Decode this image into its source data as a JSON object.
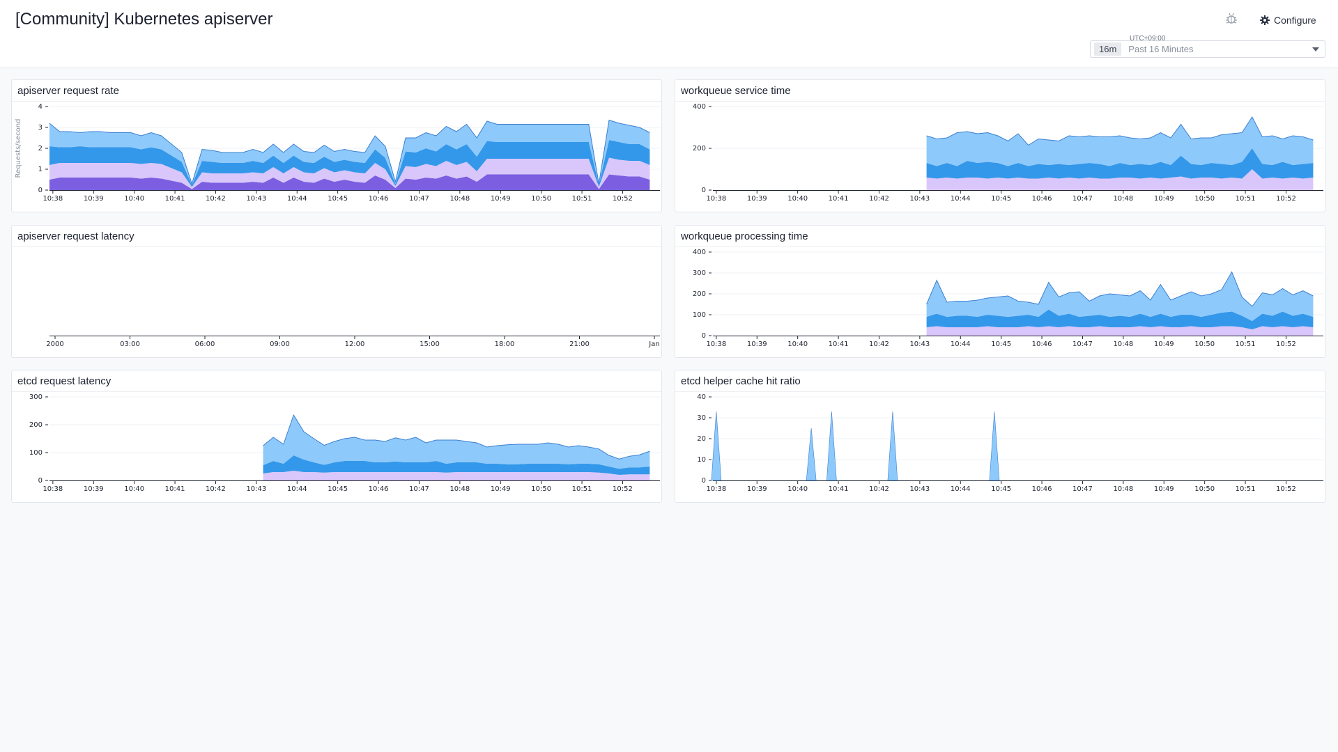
{
  "header": {
    "title": "[Community] Kubernetes apiserver",
    "configure_label": "Configure",
    "timezone": "UTC+09:00",
    "range_badge": "16m",
    "range_text": "Past 16 Minutes"
  },
  "colors": {
    "light_blue": "#8ec9fb",
    "mid_blue": "#3498ea",
    "lavender": "#d9c6fb",
    "purple": "#7b5fe0",
    "outline_blue": "#3b7fd0"
  },
  "widgets": [
    {
      "id": "apiserver-request-rate",
      "title": "apiserver request rate",
      "ylabel": "Requests/second",
      "yticks": [
        "0",
        "1",
        "2",
        "3",
        "4"
      ],
      "xticks": [
        "10:38",
        "10:39",
        "10:40",
        "10:41",
        "10:42",
        "10:43",
        "10:44",
        "10:45",
        "10:46",
        "10:47",
        "10:48",
        "10:49",
        "10:50",
        "10:51",
        "10:52"
      ]
    },
    {
      "id": "workqueue-service-time",
      "title": "workqueue service time",
      "yticks": [
        "0",
        "200",
        "400"
      ],
      "xticks": [
        "10:38",
        "10:39",
        "10:40",
        "10:41",
        "10:42",
        "10:43",
        "10:44",
        "10:45",
        "10:46",
        "10:47",
        "10:48",
        "10:49",
        "10:50",
        "10:51",
        "10:52"
      ]
    },
    {
      "id": "apiserver-request-latency",
      "title": "apiserver request latency",
      "yticks": [],
      "xticks": [
        "2000",
        "03:00",
        "06:00",
        "09:00",
        "12:00",
        "15:00",
        "18:00",
        "21:00",
        "Jan"
      ]
    },
    {
      "id": "workqueue-processing-time",
      "title": "workqueue processing time",
      "yticks": [
        "0",
        "100",
        "200",
        "300",
        "400"
      ],
      "xticks": [
        "10:38",
        "10:39",
        "10:40",
        "10:41",
        "10:42",
        "10:43",
        "10:44",
        "10:45",
        "10:46",
        "10:47",
        "10:48",
        "10:49",
        "10:50",
        "10:51",
        "10:52"
      ]
    },
    {
      "id": "etcd-request-latency",
      "title": "etcd request latency",
      "yticks": [
        "0",
        "100",
        "200",
        "300"
      ],
      "xticks": [
        "10:38",
        "10:39",
        "10:40",
        "10:41",
        "10:42",
        "10:43",
        "10:44",
        "10:45",
        "10:46",
        "10:47",
        "10:48",
        "10:49",
        "10:50",
        "10:51",
        "10:52"
      ]
    },
    {
      "id": "etcd-helper-cache-hit-ratio",
      "title": "etcd helper cache hit ratio",
      "yticks": [
        "0",
        "10",
        "20",
        "30",
        "40"
      ],
      "xticks": [
        "10:38",
        "10:39",
        "10:40",
        "10:41",
        "10:42",
        "10:43",
        "10:44",
        "10:45",
        "10:46",
        "10:47",
        "10:48",
        "10:49",
        "10:50",
        "10:51",
        "10:52"
      ]
    }
  ],
  "chart_data": [
    {
      "widget": "apiserver-request-rate",
      "type": "area",
      "stacked": true,
      "ylim": [
        0,
        4
      ],
      "x": [
        "10:37:55",
        "10:38:10",
        "10:38:25",
        "10:38:40",
        "10:38:55",
        "10:39:10",
        "10:39:25",
        "10:39:40",
        "10:39:55",
        "10:40:10",
        "10:40:25",
        "10:40:40",
        "10:40:55",
        "10:41:10",
        "10:41:25",
        "10:41:40",
        "10:41:55",
        "10:42:10",
        "10:42:25",
        "10:42:40",
        "10:42:55",
        "10:43:10",
        "10:43:25",
        "10:43:40",
        "10:43:55",
        "10:44:10",
        "10:44:25",
        "10:44:40",
        "10:44:55",
        "10:45:10",
        "10:45:25",
        "10:45:40",
        "10:45:55",
        "10:46:10",
        "10:46:25",
        "10:46:40",
        "10:46:55",
        "10:47:10",
        "10:47:25",
        "10:47:40",
        "10:47:55",
        "10:48:10",
        "10:48:25",
        "10:48:40",
        "10:48:55",
        "10:49:10",
        "10:49:25",
        "10:49:40",
        "10:49:55",
        "10:50:10",
        "10:50:25",
        "10:50:40",
        "10:50:55",
        "10:51:10",
        "10:51:25",
        "10:51:40",
        "10:51:55",
        "10:52:10",
        "10:52:25",
        "10:52:40"
      ],
      "series": [
        {
          "values": [
            0.5,
            0.6,
            0.6,
            0.6,
            0.6,
            0.6,
            0.6,
            0.6,
            0.6,
            0.55,
            0.6,
            0.55,
            0.45,
            0.35,
            0.05,
            0.4,
            0.35,
            0.35,
            0.35,
            0.35,
            0.4,
            0.35,
            0.6,
            0.35,
            0.6,
            0.4,
            0.35,
            0.55,
            0.4,
            0.5,
            0.4,
            0.35,
            0.7,
            0.5,
            0.1,
            0.55,
            0.5,
            0.6,
            0.55,
            0.7,
            0.55,
            0.65,
            0.4,
            0.75,
            0.75,
            0.75,
            0.75,
            0.75,
            0.75,
            0.75,
            0.75,
            0.75,
            0.75,
            0.75,
            0.05,
            0.75,
            0.7,
            0.65,
            0.65,
            0.5
          ]
        },
        {
          "values": [
            0.7,
            0.7,
            0.7,
            0.7,
            0.7,
            0.7,
            0.7,
            0.7,
            0.7,
            0.7,
            0.7,
            0.7,
            0.6,
            0.5,
            0.1,
            0.45,
            0.45,
            0.45,
            0.45,
            0.45,
            0.45,
            0.45,
            0.5,
            0.45,
            0.5,
            0.45,
            0.45,
            0.5,
            0.45,
            0.45,
            0.45,
            0.45,
            0.6,
            0.5,
            0.1,
            0.6,
            0.6,
            0.65,
            0.6,
            0.7,
            0.65,
            0.7,
            0.5,
            0.75,
            0.75,
            0.75,
            0.75,
            0.75,
            0.75,
            0.75,
            0.75,
            0.75,
            0.75,
            0.75,
            0.1,
            0.8,
            0.75,
            0.75,
            0.75,
            0.7
          ]
        },
        {
          "values": [
            0.9,
            0.75,
            0.75,
            0.8,
            0.75,
            0.75,
            0.75,
            0.75,
            0.75,
            0.7,
            0.75,
            0.7,
            0.6,
            0.5,
            0.1,
            0.55,
            0.55,
            0.5,
            0.5,
            0.5,
            0.55,
            0.5,
            0.55,
            0.5,
            0.55,
            0.5,
            0.5,
            0.55,
            0.5,
            0.5,
            0.5,
            0.5,
            0.65,
            0.55,
            0.1,
            0.7,
            0.7,
            0.75,
            0.7,
            0.8,
            0.75,
            0.85,
            0.7,
            0.85,
            0.8,
            0.8,
            0.8,
            0.8,
            0.8,
            0.8,
            0.8,
            0.8,
            0.8,
            0.8,
            0.1,
            0.85,
            0.85,
            0.8,
            0.8,
            0.75
          ]
        },
        {
          "values": [
            1.1,
            0.75,
            0.75,
            0.65,
            0.75,
            0.75,
            0.7,
            0.7,
            0.7,
            0.65,
            0.7,
            0.65,
            0.55,
            0.45,
            0.05,
            0.55,
            0.55,
            0.5,
            0.5,
            0.5,
            0.55,
            0.5,
            0.55,
            0.5,
            0.55,
            0.5,
            0.5,
            0.55,
            0.5,
            0.5,
            0.5,
            0.5,
            0.65,
            0.55,
            0.1,
            0.65,
            0.7,
            0.75,
            0.75,
            0.85,
            0.85,
            0.95,
            0.9,
            0.95,
            0.85,
            0.85,
            0.85,
            0.85,
            0.85,
            0.85,
            0.85,
            0.85,
            0.85,
            0.85,
            0.05,
            0.95,
            0.9,
            0.9,
            0.8,
            0.8
          ]
        }
      ]
    },
    {
      "widget": "workqueue-service-time",
      "type": "area",
      "stacked": true,
      "ylim": [
        0,
        400
      ],
      "x": [
        "10:43:10",
        "10:43:25",
        "10:43:40",
        "10:43:55",
        "10:44:10",
        "10:44:25",
        "10:44:40",
        "10:44:55",
        "10:45:10",
        "10:45:25",
        "10:45:40",
        "10:45:55",
        "10:46:10",
        "10:46:25",
        "10:46:40",
        "10:46:55",
        "10:47:10",
        "10:47:25",
        "10:47:40",
        "10:47:55",
        "10:48:10",
        "10:48:25",
        "10:48:40",
        "10:48:55",
        "10:49:10",
        "10:49:25",
        "10:49:40",
        "10:49:55",
        "10:50:10",
        "10:50:25",
        "10:50:40",
        "10:50:55",
        "10:51:10",
        "10:51:25",
        "10:51:40",
        "10:51:55",
        "10:52:10",
        "10:52:25",
        "10:52:40"
      ],
      "series": [
        {
          "values": [
            60,
            55,
            60,
            55,
            60,
            60,
            55,
            60,
            55,
            60,
            55,
            55,
            60,
            55,
            60,
            55,
            60,
            55,
            55,
            60,
            60,
            55,
            60,
            55,
            60,
            65,
            55,
            60,
            60,
            55,
            60,
            55,
            100,
            55,
            60,
            55,
            60,
            55,
            60
          ]
        },
        {
          "values": [
            70,
            60,
            70,
            60,
            80,
            70,
            80,
            70,
            60,
            70,
            60,
            70,
            60,
            70,
            60,
            70,
            70,
            70,
            60,
            70,
            60,
            70,
            60,
            80,
            60,
            100,
            70,
            60,
            70,
            70,
            60,
            80,
            100,
            70,
            60,
            80,
            60,
            70,
            70
          ]
        },
        {
          "values": [
            130,
            130,
            120,
            160,
            140,
            140,
            140,
            130,
            120,
            140,
            100,
            120,
            120,
            110,
            140,
            130,
            130,
            130,
            140,
            130,
            130,
            120,
            130,
            140,
            130,
            150,
            120,
            130,
            120,
            140,
            150,
            140,
            150,
            130,
            140,
            110,
            140,
            130,
            110
          ]
        }
      ]
    },
    {
      "widget": "apiserver-request-latency",
      "type": "area",
      "x": [],
      "series": []
    },
    {
      "widget": "workqueue-processing-time",
      "type": "area",
      "stacked": true,
      "ylim": [
        0,
        400
      ],
      "x": [
        "10:43:10",
        "10:43:25",
        "10:43:40",
        "10:43:55",
        "10:44:10",
        "10:44:25",
        "10:44:40",
        "10:44:55",
        "10:45:10",
        "10:45:25",
        "10:45:40",
        "10:45:55",
        "10:46:10",
        "10:46:25",
        "10:46:40",
        "10:46:55",
        "10:47:10",
        "10:47:25",
        "10:47:40",
        "10:47:55",
        "10:48:10",
        "10:48:25",
        "10:48:40",
        "10:48:55",
        "10:49:10",
        "10:49:25",
        "10:49:40",
        "10:49:55",
        "10:50:10",
        "10:50:25",
        "10:50:40",
        "10:50:55",
        "10:51:10",
        "10:51:25",
        "10:51:40",
        "10:51:55",
        "10:52:10",
        "10:52:25",
        "10:52:40"
      ],
      "series": [
        {
          "values": [
            40,
            45,
            40,
            40,
            40,
            40,
            45,
            40,
            40,
            40,
            45,
            40,
            45,
            40,
            45,
            40,
            40,
            45,
            40,
            40,
            40,
            45,
            40,
            45,
            40,
            40,
            45,
            40,
            40,
            45,
            45,
            40,
            30,
            45,
            40,
            45,
            40,
            45,
            40
          ]
        },
        {
          "values": [
            50,
            60,
            50,
            55,
            55,
            50,
            55,
            55,
            50,
            55,
            55,
            50,
            80,
            55,
            60,
            50,
            55,
            55,
            50,
            55,
            50,
            60,
            50,
            60,
            50,
            60,
            55,
            50,
            60,
            65,
            70,
            55,
            40,
            60,
            55,
            70,
            55,
            60,
            50
          ]
        },
        {
          "values": [
            60,
            160,
            70,
            70,
            70,
            80,
            80,
            90,
            100,
            70,
            60,
            60,
            130,
            90,
            100,
            120,
            70,
            90,
            110,
            100,
            100,
            110,
            80,
            140,
            80,
            90,
            110,
            100,
            100,
            110,
            190,
            90,
            70,
            100,
            100,
            110,
            100,
            110,
            100
          ]
        }
      ]
    },
    {
      "widget": "etcd-request-latency",
      "type": "area",
      "stacked": true,
      "ylim": [
        0,
        300
      ],
      "x": [
        "10:43:10",
        "10:43:25",
        "10:43:40",
        "10:43:55",
        "10:44:10",
        "10:44:25",
        "10:44:40",
        "10:44:55",
        "10:45:10",
        "10:45:25",
        "10:45:40",
        "10:45:55",
        "10:46:10",
        "10:46:25",
        "10:46:40",
        "10:46:55",
        "10:47:10",
        "10:47:25",
        "10:47:40",
        "10:47:55",
        "10:48:10",
        "10:48:25",
        "10:48:40",
        "10:48:55",
        "10:49:10",
        "10:49:25",
        "10:49:40",
        "10:49:55",
        "10:50:10",
        "10:50:25",
        "10:50:40",
        "10:50:55",
        "10:51:10",
        "10:51:25",
        "10:51:40",
        "10:51:55",
        "10:52:10",
        "10:52:25",
        "10:52:40"
      ],
      "series": [
        {
          "values": [
            25,
            30,
            30,
            35,
            30,
            30,
            28,
            30,
            30,
            30,
            30,
            30,
            30,
            30,
            30,
            30,
            30,
            30,
            28,
            30,
            30,
            30,
            30,
            30,
            30,
            30,
            30,
            30,
            30,
            30,
            30,
            30,
            30,
            28,
            25,
            20,
            22,
            22,
            22
          ]
        },
        {
          "values": [
            30,
            40,
            30,
            55,
            45,
            35,
            28,
            35,
            40,
            40,
            40,
            35,
            35,
            38,
            35,
            35,
            35,
            40,
            32,
            35,
            35,
            35,
            30,
            30,
            28,
            28,
            30,
            30,
            30,
            30,
            28,
            30,
            30,
            30,
            25,
            22,
            25,
            25,
            28
          ]
        },
        {
          "values": [
            70,
            85,
            70,
            145,
            100,
            85,
            70,
            75,
            80,
            85,
            75,
            80,
            75,
            85,
            80,
            90,
            70,
            75,
            85,
            80,
            75,
            70,
            60,
            65,
            70,
            72,
            70,
            70,
            75,
            70,
            62,
            65,
            60,
            55,
            40,
            35,
            40,
            45,
            55
          ]
        }
      ]
    },
    {
      "widget": "etcd-helper-cache-hit-ratio",
      "type": "area",
      "ylim": [
        0,
        40
      ],
      "spikes": [
        {
          "x": "10:38",
          "value": 33
        },
        {
          "x": "10:40:20",
          "value": 25
        },
        {
          "x": "10:40:50",
          "value": 33
        },
        {
          "x": "10:42:20",
          "value": 33
        },
        {
          "x": "10:44:50",
          "value": 33
        }
      ]
    }
  ]
}
